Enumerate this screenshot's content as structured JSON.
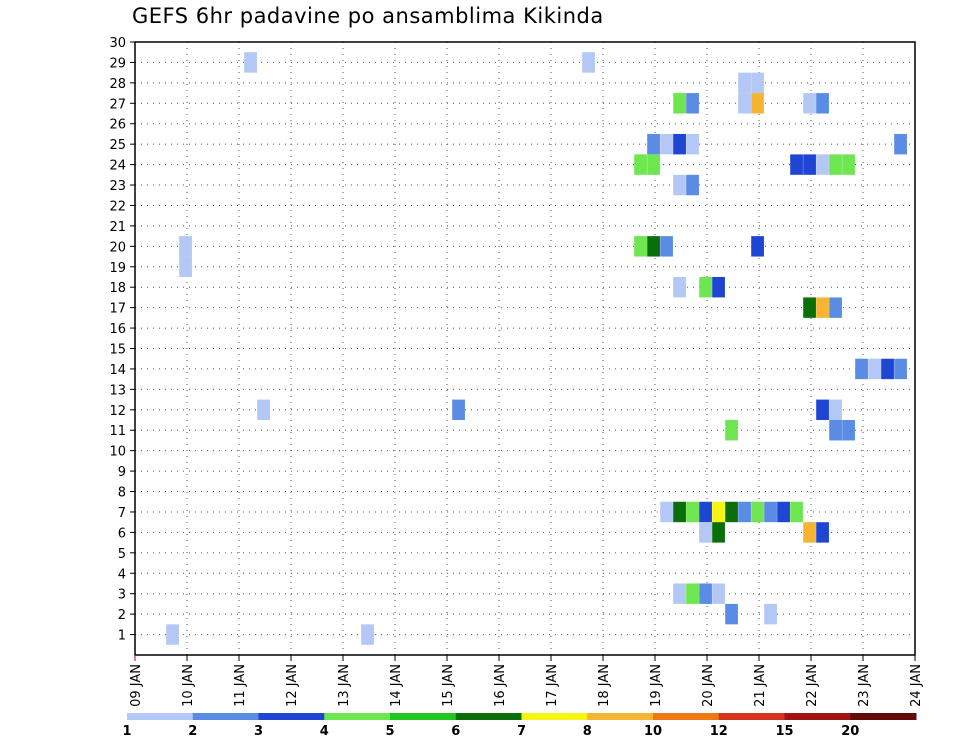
{
  "chart_data": {
    "type": "heatmap",
    "title": "GEFS 6hr padavine po ansamblima Kikinda",
    "xlabel": "",
    "ylabel": "",
    "x_range_days": [
      9,
      24
    ],
    "x_ticks": [
      {
        "day": 9,
        "label": "09 JAN"
      },
      {
        "day": 10,
        "label": "10 JAN"
      },
      {
        "day": 11,
        "label": "11 JAN"
      },
      {
        "day": 12,
        "label": "12 JAN"
      },
      {
        "day": 13,
        "label": "13 JAN"
      },
      {
        "day": 14,
        "label": "14 JAN"
      },
      {
        "day": 15,
        "label": "15 JAN"
      },
      {
        "day": 16,
        "label": "16 JAN"
      },
      {
        "day": 17,
        "label": "17 JAN"
      },
      {
        "day": 18,
        "label": "18 JAN"
      },
      {
        "day": 19,
        "label": "19 JAN"
      },
      {
        "day": 20,
        "label": "20 JAN"
      },
      {
        "day": 21,
        "label": "21 JAN"
      },
      {
        "day": 22,
        "label": "22 JAN"
      },
      {
        "day": 23,
        "label": "23 JAN"
      },
      {
        "day": 24,
        "label": "24 JAN"
      }
    ],
    "y_range": [
      0,
      30
    ],
    "y_ticks": [
      1,
      2,
      3,
      4,
      5,
      6,
      7,
      8,
      9,
      10,
      11,
      12,
      13,
      14,
      15,
      16,
      17,
      18,
      19,
      20,
      21,
      22,
      23,
      24,
      25,
      26,
      27,
      28,
      29,
      30
    ],
    "grid": true,
    "colorbar": {
      "colors": [
        "#b4c8f5",
        "#5a8ce6",
        "#1e46d2",
        "#6ee650",
        "#1ec81e",
        "#0a6e0a",
        "#f5f514",
        "#f5b432",
        "#f07814",
        "#d7321e",
        "#a01414",
        "#640a0a"
      ],
      "labels": [
        "1",
        "2",
        "3",
        "4",
        "5",
        "6",
        "7",
        "8",
        "10",
        "12",
        "15",
        "20"
      ]
    },
    "cells": [
      {
        "member": 29,
        "day": 11.1,
        "cls": 0
      },
      {
        "member": 29,
        "day": 17.6,
        "cls": 0
      },
      {
        "member": 28,
        "day": 20.6,
        "cls": 0
      },
      {
        "member": 28,
        "day": 20.85,
        "cls": 0
      },
      {
        "member": 27,
        "day": 19.35,
        "cls": 3
      },
      {
        "member": 27,
        "day": 19.6,
        "cls": 1
      },
      {
        "member": 27,
        "day": 20.6,
        "cls": 0
      },
      {
        "member": 27,
        "day": 20.85,
        "cls": 7
      },
      {
        "member": 27,
        "day": 21.85,
        "cls": 0
      },
      {
        "member": 27,
        "day": 22.1,
        "cls": 1
      },
      {
        "member": 25,
        "day": 18.85,
        "cls": 1
      },
      {
        "member": 25,
        "day": 19.1,
        "cls": 0
      },
      {
        "member": 25,
        "day": 19.35,
        "cls": 2
      },
      {
        "member": 25,
        "day": 19.6,
        "cls": 0
      },
      {
        "member": 25,
        "day": 23.6,
        "cls": 1
      },
      {
        "member": 24,
        "day": 18.6,
        "cls": 3
      },
      {
        "member": 24,
        "day": 18.85,
        "cls": 3
      },
      {
        "member": 24,
        "day": 21.6,
        "cls": 2
      },
      {
        "member": 24,
        "day": 21.85,
        "cls": 2
      },
      {
        "member": 24,
        "day": 22.1,
        "cls": 0
      },
      {
        "member": 24,
        "day": 22.35,
        "cls": 3
      },
      {
        "member": 24,
        "day": 22.6,
        "cls": 3
      },
      {
        "member": 23,
        "day": 19.35,
        "cls": 0
      },
      {
        "member": 23,
        "day": 19.6,
        "cls": 1
      },
      {
        "member": 20,
        "day": 9.85,
        "cls": 0
      },
      {
        "member": 20,
        "day": 18.6,
        "cls": 3
      },
      {
        "member": 20,
        "day": 18.85,
        "cls": 5
      },
      {
        "member": 20,
        "day": 19.1,
        "cls": 1
      },
      {
        "member": 20,
        "day": 20.85,
        "cls": 2
      },
      {
        "member": 19,
        "day": 9.85,
        "cls": 0
      },
      {
        "member": 18,
        "day": 19.35,
        "cls": 0
      },
      {
        "member": 18,
        "day": 19.85,
        "cls": 3
      },
      {
        "member": 18,
        "day": 20.1,
        "cls": 2
      },
      {
        "member": 17,
        "day": 21.85,
        "cls": 5
      },
      {
        "member": 17,
        "day": 22.1,
        "cls": 7
      },
      {
        "member": 17,
        "day": 22.35,
        "cls": 1
      },
      {
        "member": 14,
        "day": 22.85,
        "cls": 1
      },
      {
        "member": 14,
        "day": 23.1,
        "cls": 0
      },
      {
        "member": 14,
        "day": 23.35,
        "cls": 2
      },
      {
        "member": 14,
        "day": 23.6,
        "cls": 1
      },
      {
        "member": 12,
        "day": 11.35,
        "cls": 0
      },
      {
        "member": 12,
        "day": 15.1,
        "cls": 1
      },
      {
        "member": 12,
        "day": 22.1,
        "cls": 2
      },
      {
        "member": 12,
        "day": 22.35,
        "cls": 0
      },
      {
        "member": 11,
        "day": 20.35,
        "cls": 3
      },
      {
        "member": 11,
        "day": 22.35,
        "cls": 1
      },
      {
        "member": 11,
        "day": 22.6,
        "cls": 1
      },
      {
        "member": 7,
        "day": 19.1,
        "cls": 0
      },
      {
        "member": 7,
        "day": 19.35,
        "cls": 5
      },
      {
        "member": 7,
        "day": 19.6,
        "cls": 3
      },
      {
        "member": 7,
        "day": 19.85,
        "cls": 2
      },
      {
        "member": 7,
        "day": 20.1,
        "cls": 6
      },
      {
        "member": 7,
        "day": 20.35,
        "cls": 5
      },
      {
        "member": 7,
        "day": 20.6,
        "cls": 1
      },
      {
        "member": 7,
        "day": 20.85,
        "cls": 3
      },
      {
        "member": 7,
        "day": 21.1,
        "cls": 1
      },
      {
        "member": 7,
        "day": 21.35,
        "cls": 2
      },
      {
        "member": 7,
        "day": 21.6,
        "cls": 3
      },
      {
        "member": 6,
        "day": 19.85,
        "cls": 0
      },
      {
        "member": 6,
        "day": 20.1,
        "cls": 5
      },
      {
        "member": 6,
        "day": 21.85,
        "cls": 7
      },
      {
        "member": 6,
        "day": 22.1,
        "cls": 2
      },
      {
        "member": 3,
        "day": 19.35,
        "cls": 0
      },
      {
        "member": 3,
        "day": 19.6,
        "cls": 3
      },
      {
        "member": 3,
        "day": 19.85,
        "cls": 1
      },
      {
        "member": 3,
        "day": 20.1,
        "cls": 0
      },
      {
        "member": 2,
        "day": 20.35,
        "cls": 1
      },
      {
        "member": 2,
        "day": 21.1,
        "cls": 0
      },
      {
        "member": 1,
        "day": 9.6,
        "cls": 0
      },
      {
        "member": 1,
        "day": 13.35,
        "cls": 0
      }
    ]
  }
}
